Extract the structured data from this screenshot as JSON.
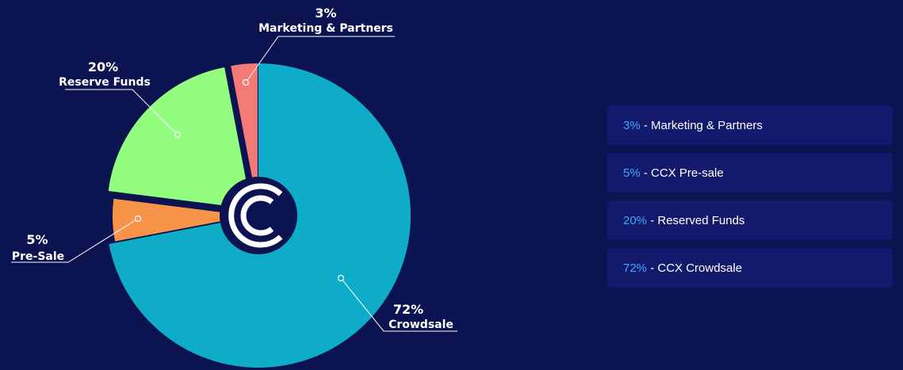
{
  "chart_data": {
    "type": "pie",
    "slices": [
      {
        "label": "Crowdsale",
        "value": 72,
        "pct_text": "72%",
        "color": "#0eacc9"
      },
      {
        "label": "Pre-Sale",
        "value": 5,
        "pct_text": "5%",
        "color": "#f8944a"
      },
      {
        "label": "Reserve Funds",
        "value": 20,
        "pct_text": "20%",
        "color": "#92fd7e"
      },
      {
        "label": "Marketing & Partners",
        "value": 3,
        "pct_text": "3%",
        "color": "#f47a78"
      }
    ]
  },
  "legend": {
    "items": [
      {
        "pct": "3%",
        "sep": " - ",
        "text": "Marketing & Partners"
      },
      {
        "pct": "5%",
        "sep": " - ",
        "text": "CCX Pre-sale"
      },
      {
        "pct": "20%",
        "sep": " - ",
        "text": "Reserved Funds"
      },
      {
        "pct": "72%",
        "sep": " - ",
        "text": "CCX Crowdsale"
      }
    ]
  },
  "colors": {
    "background": "#0b1350",
    "legend_bg": "#131a6b",
    "legend_accent": "#3ea8ff",
    "logo_ring": "#0b1350",
    "logo_mark": "#ffffff"
  }
}
